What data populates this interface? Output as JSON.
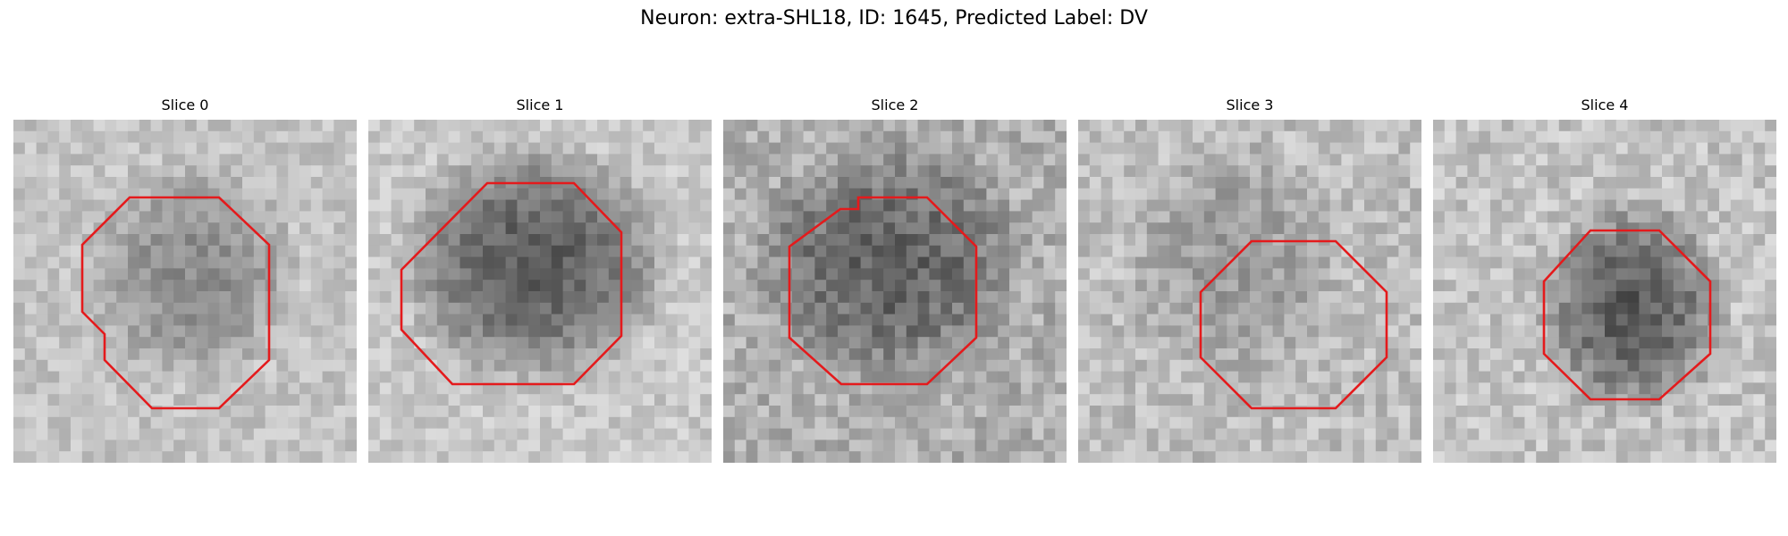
{
  "figure": {
    "title": "Neuron: extra-SHL18, ID: 1645, Predicted Label: DV"
  },
  "panels": [
    {
      "title": "Slice 0"
    },
    {
      "title": "Slice 1"
    },
    {
      "title": "Slice 2"
    },
    {
      "title": "Slice 3"
    },
    {
      "title": "Slice 4"
    }
  ],
  "colors": {
    "outline": "#e41a1c",
    "background": "#ffffff"
  }
}
